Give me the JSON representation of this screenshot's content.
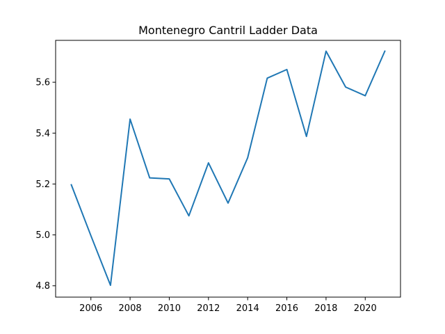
{
  "chart_data": {
    "type": "line",
    "title": "Montenegro Cantril Ladder Data",
    "xlabel": "",
    "ylabel": "",
    "x": [
      2005,
      2006,
      2007,
      2008,
      2009,
      2010,
      2011,
      2012,
      2013,
      2014,
      2015,
      2016,
      2017,
      2018,
      2019,
      2020,
      2021
    ],
    "series": [
      {
        "name": "Cantril Ladder",
        "color": "#1f77b4",
        "values": [
          5.197,
          4.997,
          4.802,
          5.455,
          5.224,
          5.22,
          5.075,
          5.283,
          5.125,
          5.303,
          5.616,
          5.65,
          5.387,
          5.722,
          5.581,
          5.547,
          5.722
        ]
      }
    ],
    "xlim": [
      2004.2,
      2021.8
    ],
    "ylim": [
      4.7555,
      5.7645
    ],
    "xticks": [
      2006,
      2008,
      2010,
      2012,
      2014,
      2016,
      2018,
      2020
    ],
    "xtick_labels": [
      "2006",
      "2008",
      "2010",
      "2012",
      "2014",
      "2016",
      "2018",
      "2020"
    ],
    "yticks": [
      4.8,
      5.0,
      5.2,
      5.4,
      5.6
    ],
    "ytick_labels": [
      "4.8",
      "5.0",
      "5.2",
      "5.4",
      "5.6"
    ],
    "grid": false,
    "legend": "none"
  }
}
